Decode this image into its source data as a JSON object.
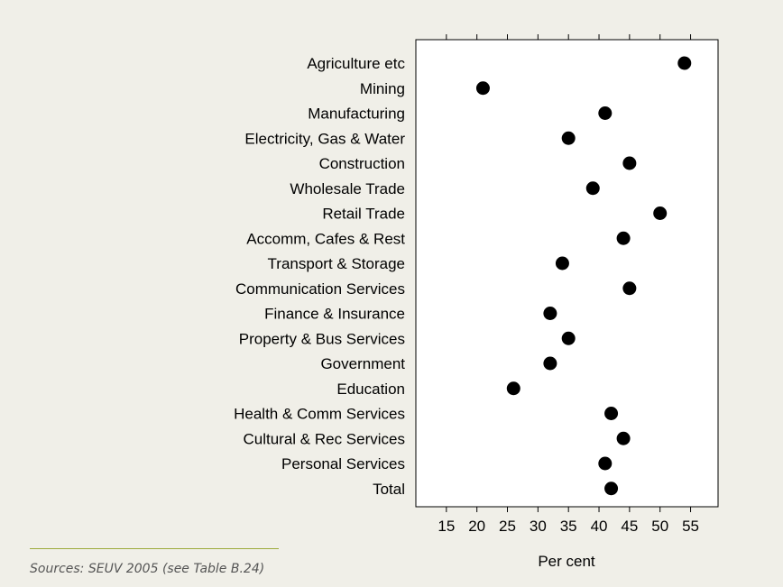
{
  "chart_data": {
    "type": "dot",
    "categories": [
      "Agriculture etc",
      "Mining",
      "Manufacturing",
      "Electricity, Gas & Water",
      "Construction",
      "Wholesale Trade",
      "Retail Trade",
      "Accomm, Cafes & Rest",
      "Transport & Storage",
      "Communication Services",
      "Finance & Insurance",
      "Property & Bus Services",
      "Government",
      "Education",
      "Health & Comm Services",
      "Cultural & Rec Services",
      "Personal Services",
      "Total"
    ],
    "values": [
      54,
      21,
      41,
      35,
      45,
      39,
      50,
      44,
      34,
      45,
      32,
      35,
      32,
      26,
      42,
      44,
      41,
      42
    ],
    "xlabel": "Per cent",
    "xticks": [
      15,
      20,
      25,
      30,
      35,
      40,
      45,
      50,
      55
    ],
    "xlim": [
      10,
      59.5
    ],
    "grid": false,
    "marker_color": "#000000",
    "plot_background": "#ffffff"
  },
  "source_note": "Sources: SEUV 2005 (see Table B.24)"
}
